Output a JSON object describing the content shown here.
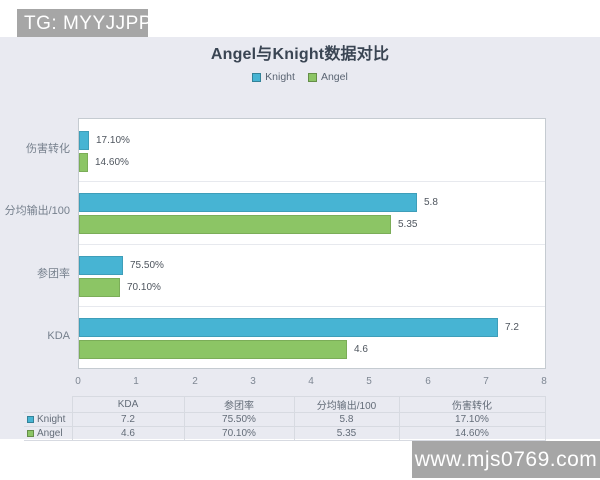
{
  "watermark_top": {
    "text": "TG: MYYJJPP"
  },
  "watermark_bottom": {
    "text": "www.mjs0769.com"
  },
  "chart_data": {
    "type": "bar",
    "orientation": "horizontal",
    "title": "Angel与Knight数据对比",
    "categories": [
      "伤害转化",
      "分均输出/100",
      "参团率",
      "KDA"
    ],
    "series": [
      {
        "name": "Knight",
        "color": "#47b4d3",
        "values": [
          0.171,
          5.8,
          0.755,
          7.2
        ],
        "labels": [
          "17.10%",
          "5.8",
          "75.50%",
          "7.2"
        ]
      },
      {
        "name": "Angel",
        "color": "#8cc565",
        "values": [
          0.146,
          5.35,
          0.701,
          4.6
        ],
        "labels": [
          "14.60%",
          "5.35",
          "70.10%",
          "4.6"
        ]
      }
    ],
    "xlim": [
      0,
      8
    ],
    "x_ticks": [
      0,
      1,
      2,
      3,
      4,
      5,
      6,
      7,
      8
    ],
    "legend_position": "top",
    "grid": "band-separators-only",
    "plot_background": "#ffffff",
    "page_background": "#e9eaf1"
  },
  "table": {
    "headers": [
      "",
      "KDA",
      "参团率",
      "分均输出/100",
      "伤害转化"
    ],
    "rows": [
      {
        "name": "Knight",
        "color": "#47b4d3",
        "cells": [
          "7.2",
          "75.50%",
          "5.8",
          "17.10%"
        ]
      },
      {
        "name": "Angel",
        "color": "#8cc565",
        "cells": [
          "4.6",
          "70.10%",
          "5.35",
          "14.60%"
        ]
      }
    ]
  }
}
